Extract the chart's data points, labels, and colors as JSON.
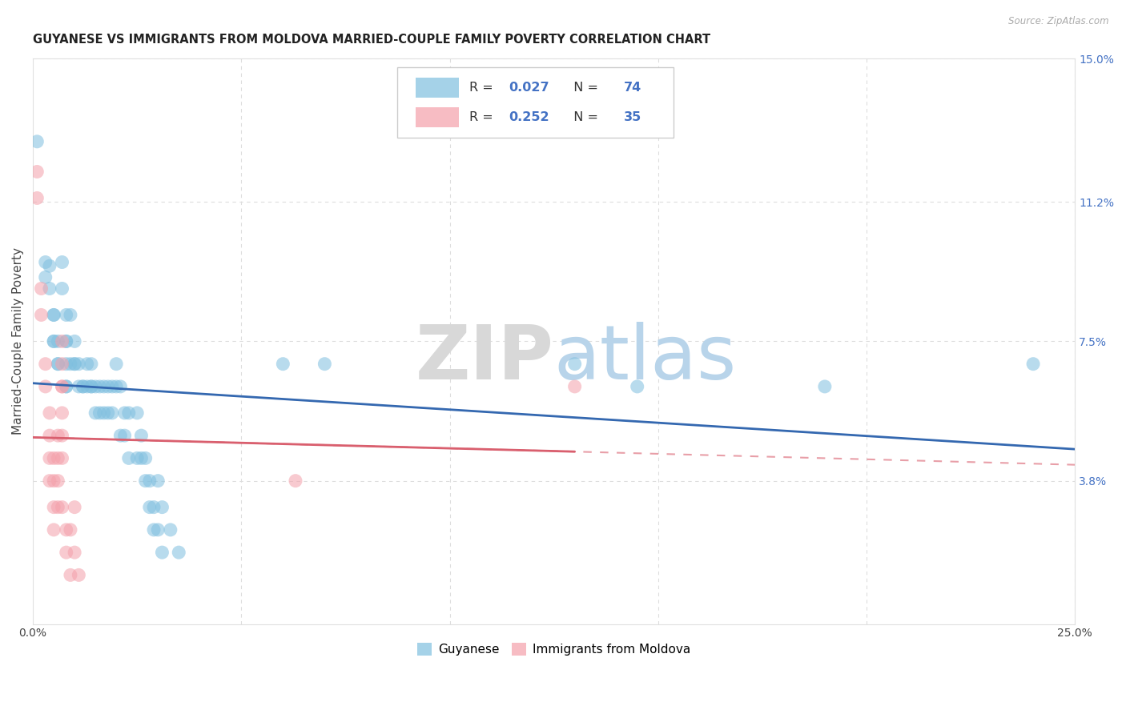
{
  "title": "GUYANESE VS IMMIGRANTS FROM MOLDOVA MARRIED-COUPLE FAMILY POVERTY CORRELATION CHART",
  "source": "Source: ZipAtlas.com",
  "ylabel": "Married-Couple Family Poverty",
  "xlim": [
    0.0,
    0.25
  ],
  "ylim": [
    0.0,
    0.15
  ],
  "xtick_vals": [
    0.0,
    0.05,
    0.1,
    0.15,
    0.2,
    0.25
  ],
  "xticklabels": [
    "0.0%",
    "",
    "",
    "",
    "",
    "25.0%"
  ],
  "ytick_right_vals": [
    0.038,
    0.075,
    0.112,
    0.15
  ],
  "ytick_right_labels": [
    "3.8%",
    "7.5%",
    "11.2%",
    "15.0%"
  ],
  "legend1_label": "Guyanese",
  "legend2_label": "Immigrants from Moldova",
  "R1": 0.027,
  "N1": 74,
  "R2": 0.252,
  "N2": 35,
  "blue_color": "#7fbfdf",
  "pink_color": "#f4a0aa",
  "blue_line_color": "#3468b0",
  "pink_line_color": "#d95f6e",
  "blue_scatter": [
    [
      0.001,
      0.128
    ],
    [
      0.003,
      0.096
    ],
    [
      0.003,
      0.092
    ],
    [
      0.004,
      0.095
    ],
    [
      0.004,
      0.089
    ],
    [
      0.005,
      0.082
    ],
    [
      0.005,
      0.082
    ],
    [
      0.005,
      0.075
    ],
    [
      0.005,
      0.075
    ],
    [
      0.006,
      0.075
    ],
    [
      0.006,
      0.069
    ],
    [
      0.006,
      0.069
    ],
    [
      0.007,
      0.096
    ],
    [
      0.007,
      0.089
    ],
    [
      0.008,
      0.082
    ],
    [
      0.008,
      0.075
    ],
    [
      0.008,
      0.075
    ],
    [
      0.008,
      0.069
    ],
    [
      0.008,
      0.063
    ],
    [
      0.008,
      0.063
    ],
    [
      0.009,
      0.082
    ],
    [
      0.009,
      0.069
    ],
    [
      0.01,
      0.075
    ],
    [
      0.01,
      0.069
    ],
    [
      0.01,
      0.069
    ],
    [
      0.011,
      0.069
    ],
    [
      0.011,
      0.063
    ],
    [
      0.012,
      0.063
    ],
    [
      0.012,
      0.063
    ],
    [
      0.013,
      0.069
    ],
    [
      0.013,
      0.063
    ],
    [
      0.014,
      0.069
    ],
    [
      0.014,
      0.063
    ],
    [
      0.014,
      0.063
    ],
    [
      0.015,
      0.063
    ],
    [
      0.015,
      0.056
    ],
    [
      0.016,
      0.063
    ],
    [
      0.016,
      0.056
    ],
    [
      0.017,
      0.063
    ],
    [
      0.017,
      0.056
    ],
    [
      0.018,
      0.063
    ],
    [
      0.018,
      0.056
    ],
    [
      0.019,
      0.063
    ],
    [
      0.019,
      0.056
    ],
    [
      0.02,
      0.069
    ],
    [
      0.02,
      0.063
    ],
    [
      0.021,
      0.063
    ],
    [
      0.021,
      0.05
    ],
    [
      0.022,
      0.056
    ],
    [
      0.022,
      0.05
    ],
    [
      0.023,
      0.056
    ],
    [
      0.023,
      0.044
    ],
    [
      0.025,
      0.056
    ],
    [
      0.025,
      0.044
    ],
    [
      0.026,
      0.05
    ],
    [
      0.026,
      0.044
    ],
    [
      0.027,
      0.044
    ],
    [
      0.027,
      0.038
    ],
    [
      0.028,
      0.038
    ],
    [
      0.028,
      0.031
    ],
    [
      0.029,
      0.031
    ],
    [
      0.029,
      0.025
    ],
    [
      0.03,
      0.038
    ],
    [
      0.03,
      0.025
    ],
    [
      0.031,
      0.031
    ],
    [
      0.031,
      0.019
    ],
    [
      0.033,
      0.025
    ],
    [
      0.035,
      0.019
    ],
    [
      0.06,
      0.069
    ],
    [
      0.07,
      0.069
    ],
    [
      0.13,
      0.069
    ],
    [
      0.145,
      0.063
    ],
    [
      0.19,
      0.063
    ],
    [
      0.24,
      0.069
    ]
  ],
  "pink_scatter": [
    [
      0.001,
      0.12
    ],
    [
      0.001,
      0.113
    ],
    [
      0.002,
      0.089
    ],
    [
      0.002,
      0.082
    ],
    [
      0.003,
      0.069
    ],
    [
      0.003,
      0.063
    ],
    [
      0.004,
      0.056
    ],
    [
      0.004,
      0.05
    ],
    [
      0.004,
      0.044
    ],
    [
      0.004,
      0.038
    ],
    [
      0.005,
      0.044
    ],
    [
      0.005,
      0.038
    ],
    [
      0.005,
      0.031
    ],
    [
      0.005,
      0.025
    ],
    [
      0.006,
      0.05
    ],
    [
      0.006,
      0.044
    ],
    [
      0.006,
      0.038
    ],
    [
      0.006,
      0.031
    ],
    [
      0.007,
      0.075
    ],
    [
      0.007,
      0.069
    ],
    [
      0.007,
      0.063
    ],
    [
      0.007,
      0.063
    ],
    [
      0.007,
      0.056
    ],
    [
      0.007,
      0.05
    ],
    [
      0.007,
      0.044
    ],
    [
      0.007,
      0.031
    ],
    [
      0.008,
      0.025
    ],
    [
      0.008,
      0.019
    ],
    [
      0.009,
      0.025
    ],
    [
      0.009,
      0.013
    ],
    [
      0.01,
      0.031
    ],
    [
      0.01,
      0.019
    ],
    [
      0.011,
      0.013
    ],
    [
      0.063,
      0.038
    ],
    [
      0.13,
      0.063
    ]
  ],
  "watermark_zip": "ZIP",
  "watermark_atlas": "atlas",
  "background_color": "#ffffff",
  "grid_color": "#dddddd",
  "title_fontsize": 10.5,
  "axis_label_fontsize": 11,
  "tick_fontsize": 10,
  "right_tick_color": "#4472c4"
}
